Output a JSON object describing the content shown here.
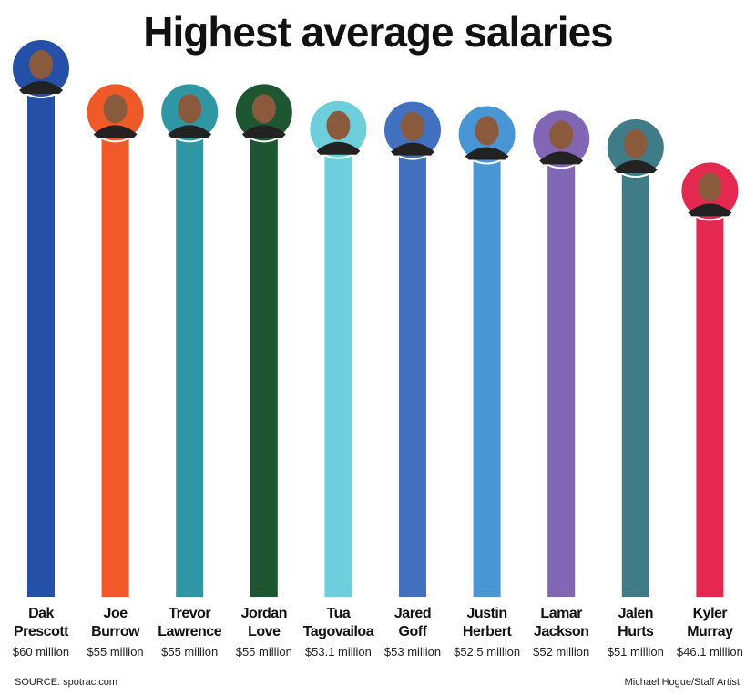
{
  "chart_data": {
    "type": "bar",
    "title": "Highest average salaries",
    "categories": [
      "Dak Prescott",
      "Joe Burrow",
      "Trevor Lawrence",
      "Jordan Love",
      "Tua Tagovailoa",
      "Jared Goff",
      "Justin Herbert",
      "Lamar Jackson",
      "Jalen Hurts",
      "Kyler Murray"
    ],
    "values": [
      60,
      55,
      55,
      55,
      53.1,
      53,
      52.5,
      52,
      51,
      46.1
    ],
    "value_labels": [
      "$60 million",
      "$55 million",
      "$55 million",
      "$55 million",
      "$53.1 million",
      "$53 million",
      "$52.5 million",
      "$52 million",
      "$51 million",
      "$46.1 million"
    ],
    "colors": [
      "#2550a8",
      "#f05a28",
      "#2f97a3",
      "#1e5631",
      "#6ecfdc",
      "#4272bf",
      "#4a95d3",
      "#8066b4",
      "#3f7c88",
      "#e5284f"
    ],
    "source": "SOURCE: spotrac.com",
    "credit": "Michael Hogue/Staff Artist"
  }
}
